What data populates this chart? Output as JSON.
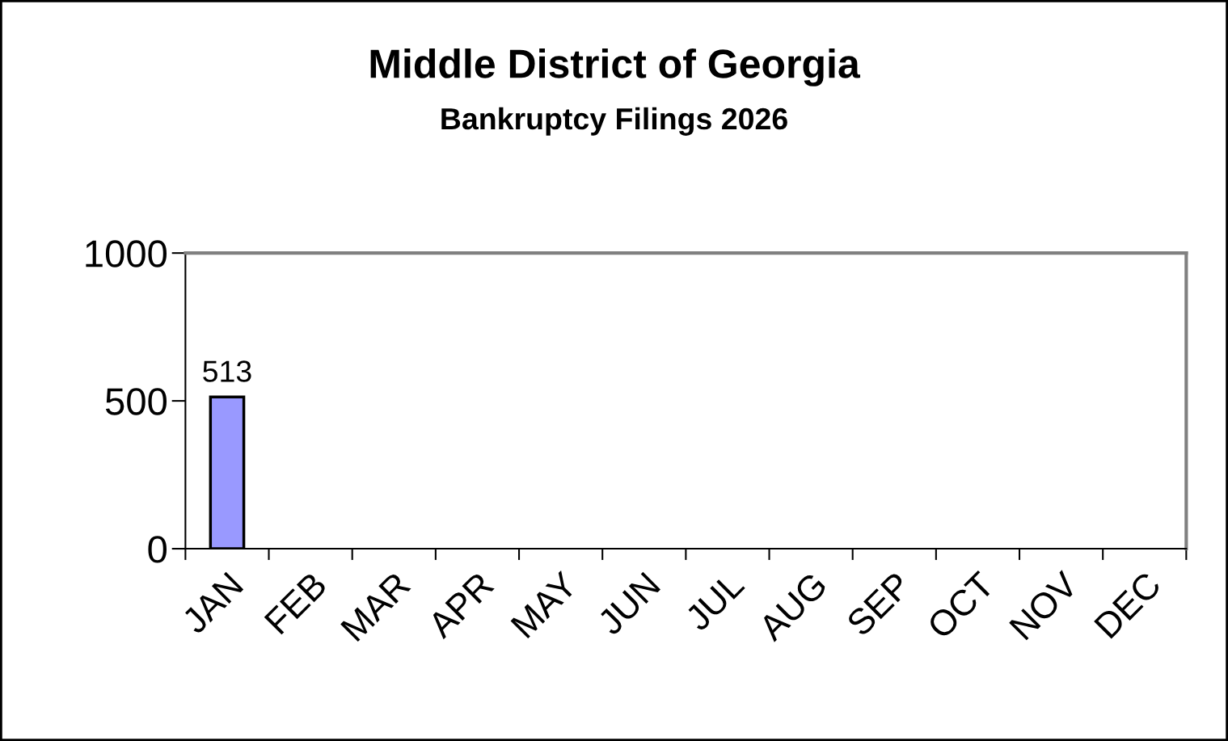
{
  "chart_data": {
    "type": "bar",
    "title": "Middle District of Georgia",
    "subtitle": "Bankruptcy Filings 2026",
    "categories": [
      "JAN",
      "FEB",
      "MAR",
      "APR",
      "MAY",
      "JUN",
      "JUL",
      "AUG",
      "SEP",
      "OCT",
      "NOV",
      "DEC"
    ],
    "values": [
      513,
      null,
      null,
      null,
      null,
      null,
      null,
      null,
      null,
      null,
      null,
      null
    ],
    "color": "#9999ff",
    "ylim": [
      0,
      1000
    ],
    "yticks": [
      0,
      500,
      1000
    ],
    "grid": false,
    "data_labels": true
  }
}
